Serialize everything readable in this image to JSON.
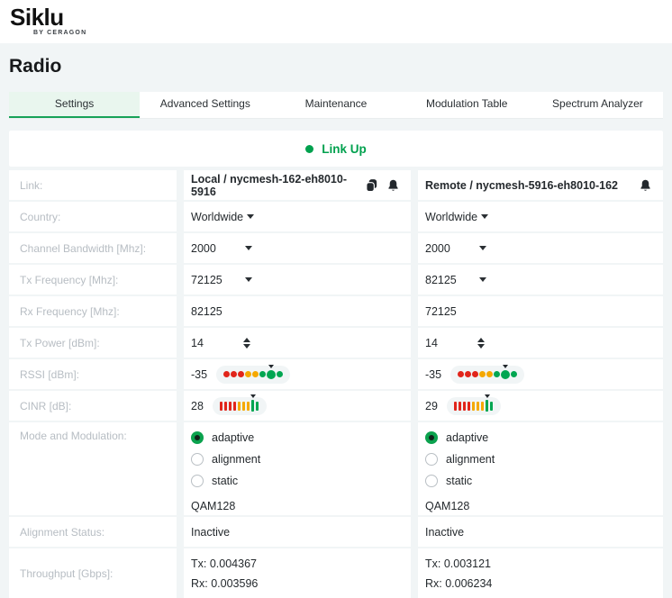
{
  "brand": {
    "name": "Siklu",
    "byline": "BY CERAGON"
  },
  "page": {
    "title": "Radio"
  },
  "tabs": [
    {
      "label": "Settings",
      "active": true
    },
    {
      "label": "Advanced Settings",
      "active": false
    },
    {
      "label": "Maintenance",
      "active": false
    },
    {
      "label": "Modulation Table",
      "active": false
    },
    {
      "label": "Spectrum Analyzer",
      "active": false
    }
  ],
  "status": {
    "link_state": "Link Up"
  },
  "icons": {
    "copy": "copy-icon",
    "bell": "bell-icon",
    "chevron": "chevron-down-icon",
    "stepper": "stepper-up-down-icon"
  },
  "colors": {
    "red": "#e1251b",
    "amber": "#f5a800",
    "green": "#00a651",
    "accent": "#00a14e",
    "tab_active_bg": "#e9f6ee",
    "icon_dark": "#23282d"
  },
  "rows": [
    {
      "label": "Link:",
      "local": {
        "value": "Local / nycmesh-162-eh8010-5916"
      },
      "remote": {
        "value": "Remote / nycmesh-5916-eh8010-162"
      }
    },
    {
      "label": "Country:",
      "local": {
        "value": "Worldwide"
      },
      "remote": {
        "value": "Worldwide"
      }
    },
    {
      "label": "Channel Bandwidth [Mhz]:",
      "local": {
        "value": "2000"
      },
      "remote": {
        "value": "2000"
      }
    },
    {
      "label": "Tx Frequency [Mhz]:",
      "local": {
        "value": "72125"
      },
      "remote": {
        "value": "82125"
      }
    },
    {
      "label": "Rx Frequency [Mhz]:",
      "local": {
        "value": "82125"
      },
      "remote": {
        "value": "72125"
      }
    },
    {
      "label": "Tx Power [dBm]:",
      "local": {
        "value": "14"
      },
      "remote": {
        "value": "14"
      }
    },
    {
      "label": "RSSI [dBm]:",
      "local": {
        "value": "-35"
      },
      "remote": {
        "value": "-35"
      }
    },
    {
      "label": "CINR [dB]:",
      "local": {
        "value": "28"
      },
      "remote": {
        "value": "29"
      }
    },
    {
      "label": "Mode and Modulation:",
      "options": [
        "adaptive",
        "alignment",
        "static"
      ],
      "selected": "adaptive",
      "local": {
        "modulation": "QAM128"
      },
      "remote": {
        "modulation": "QAM128"
      }
    },
    {
      "label": "Alignment Status:",
      "local": {
        "value": "Inactive"
      },
      "remote": {
        "value": "Inactive"
      }
    },
    {
      "label": "Throughput [Gbps]:",
      "local": {
        "tx": "Tx: 0.004367",
        "rx": "Rx: 0.003596"
      },
      "remote": {
        "tx": "Tx: 0.003121",
        "rx": "Rx: 0.006234"
      }
    }
  ],
  "signals": {
    "rssi_local": {
      "type": "dots",
      "segments": [
        "r",
        "r",
        "r",
        "y",
        "y",
        "g",
        "G",
        "g"
      ]
    },
    "rssi_remote": {
      "type": "dots",
      "segments": [
        "r",
        "r",
        "r",
        "y",
        "y",
        "g",
        "G",
        "g"
      ]
    },
    "cinr_local": {
      "type": "bars",
      "segments": [
        "r",
        "r",
        "r",
        "r",
        "y",
        "y",
        "y",
        "G",
        "g"
      ]
    },
    "cinr_remote": {
      "type": "bars",
      "segments": [
        "r",
        "r",
        "r",
        "r",
        "y",
        "y",
        "y",
        "G",
        "g"
      ]
    }
  }
}
